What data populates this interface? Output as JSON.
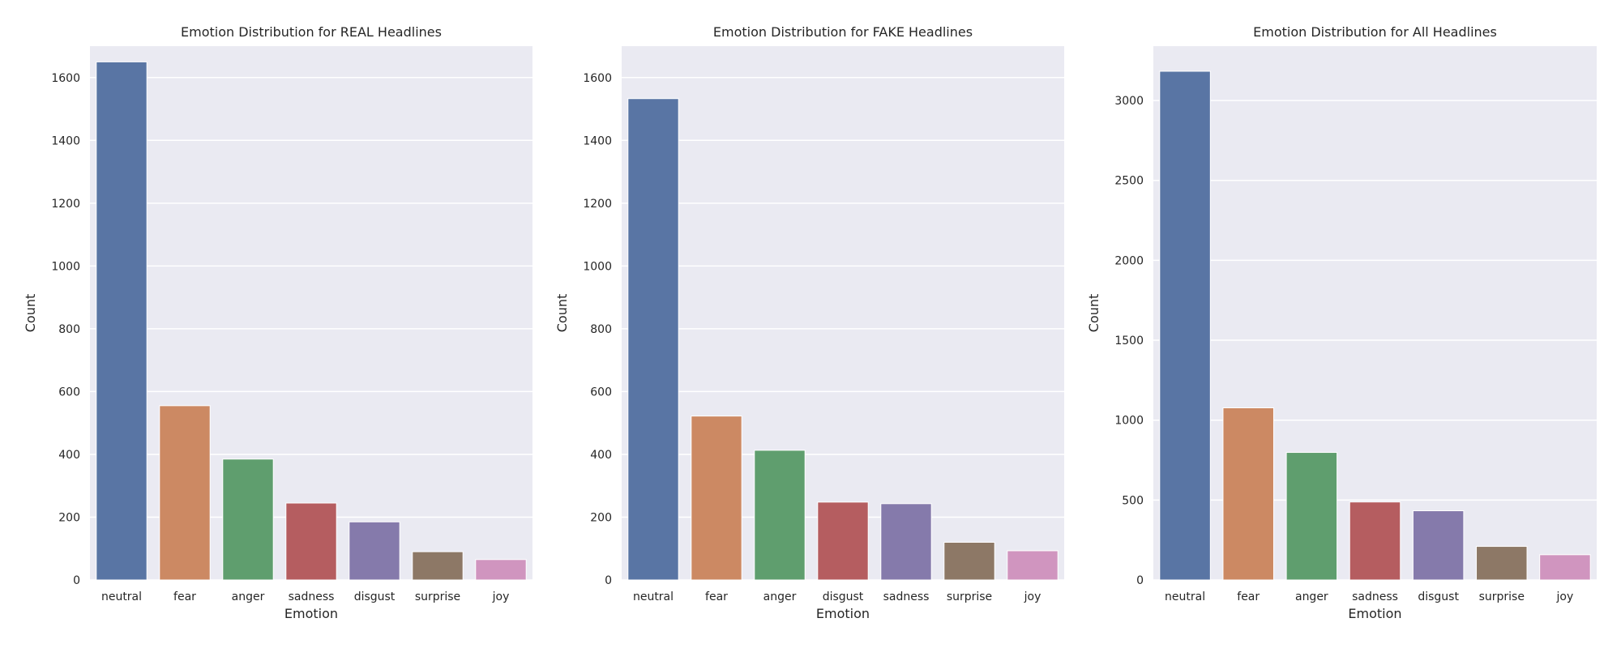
{
  "chart_data": [
    {
      "type": "bar",
      "title": "Emotion Distribution for REAL Headlines",
      "xlabel": "Emotion",
      "ylabel": "Count",
      "categories": [
        "neutral",
        "fear",
        "anger",
        "sadness",
        "disgust",
        "surprise",
        "joy"
      ],
      "values": [
        1650,
        555,
        385,
        245,
        185,
        90,
        65
      ],
      "colors": [
        "#5975a4",
        "#cc8963",
        "#5f9e6e",
        "#b55d60",
        "#857aab",
        "#8d7866",
        "#d095bf"
      ],
      "ylim": [
        0,
        1700
      ],
      "yticks": [
        0,
        200,
        400,
        600,
        800,
        1000,
        1200,
        1400,
        1600
      ],
      "grid": true
    },
    {
      "type": "bar",
      "title": "Emotion Distribution for FAKE Headlines",
      "xlabel": "Emotion",
      "ylabel": "Count",
      "categories": [
        "neutral",
        "fear",
        "anger",
        "disgust",
        "sadness",
        "surprise",
        "joy"
      ],
      "values": [
        1533,
        522,
        413,
        248,
        243,
        120,
        93
      ],
      "colors": [
        "#5975a4",
        "#cc8963",
        "#5f9e6e",
        "#b55d60",
        "#857aab",
        "#8d7866",
        "#d095bf"
      ],
      "ylim": [
        0,
        1700
      ],
      "yticks": [
        0,
        200,
        400,
        600,
        800,
        1000,
        1200,
        1400,
        1600
      ],
      "grid": true
    },
    {
      "type": "bar",
      "title": "Emotion Distribution for All Headlines",
      "xlabel": "Emotion",
      "ylabel": "Count",
      "categories": [
        "neutral",
        "fear",
        "anger",
        "sadness",
        "disgust",
        "surprise",
        "joy"
      ],
      "values": [
        3183,
        1077,
        798,
        488,
        433,
        210,
        158
      ],
      "colors": [
        "#5975a4",
        "#cc8963",
        "#5f9e6e",
        "#b55d60",
        "#857aab",
        "#8d7866",
        "#d095bf"
      ],
      "ylim": [
        0,
        3340
      ],
      "yticks": [
        0,
        500,
        1000,
        1500,
        2000,
        2500,
        3000
      ],
      "grid": true
    }
  ]
}
